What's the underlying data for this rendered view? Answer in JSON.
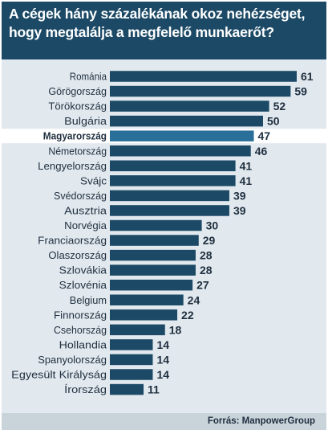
{
  "title_lines": [
    "A cégek hány százalékának okoz nehézséget,",
    "hogy megtalálja a megfelelő munkaerőt?"
  ],
  "source": "Forrás: ManpowerGroup",
  "colors": {
    "header_bg": "#1c4a66",
    "bar": "#1c4a66",
    "highlight_bar": "#2a6f9a",
    "plot_bg": "#e1e8ee",
    "text": "#1f2f3f"
  },
  "chart_data": {
    "type": "bar",
    "orientation": "horizontal",
    "title": "A cégek hány százalékának okoz nehézséget, hogy megtalálja a megfelelő munkaerőt?",
    "xlabel": "",
    "ylabel": "",
    "xlim": [
      0,
      61
    ],
    "highlight": "Magyarország",
    "categories": [
      "Románia",
      "Görögország",
      "Törökország",
      "Bulgária",
      "Magyarország",
      "Németország",
      "Lengyelország",
      "Svájc",
      "Svédország",
      "Ausztria",
      "Norvégia",
      "Franciaország",
      "Olaszország",
      "Szlovákia",
      "Szlovénia",
      "Belgium",
      "Finnország",
      "Csehország",
      "Hollandia",
      "Spanyolország",
      "Egyesült Királyság",
      "Írország"
    ],
    "values": [
      61,
      59,
      52,
      50,
      47,
      46,
      41,
      41,
      39,
      39,
      30,
      29,
      28,
      28,
      27,
      24,
      22,
      18,
      14,
      14,
      14,
      11
    ]
  }
}
